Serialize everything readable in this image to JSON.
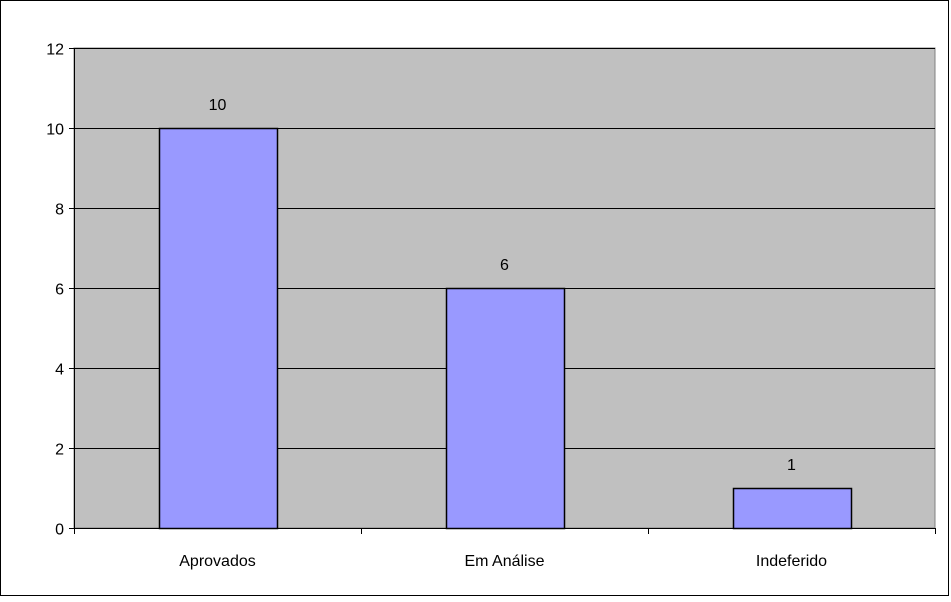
{
  "chart_data": {
    "type": "bar",
    "categories": [
      "Aprovados",
      "Em Análise",
      "Indeferido"
    ],
    "values": [
      10,
      6,
      1
    ],
    "data_labels": [
      "10",
      "6",
      "1"
    ],
    "ylim": [
      0,
      12
    ],
    "y_ticks": [
      0,
      2,
      4,
      6,
      8,
      10,
      12
    ],
    "y_tick_labels": [
      "0",
      "2",
      "4",
      "6",
      "8",
      "10",
      "12"
    ],
    "grid": true,
    "legend": "none",
    "colors": {
      "bar_fill": "#9999ff",
      "plot_background": "#c0c0c0",
      "gridline": "#000000",
      "outer_border": "#000000"
    }
  }
}
